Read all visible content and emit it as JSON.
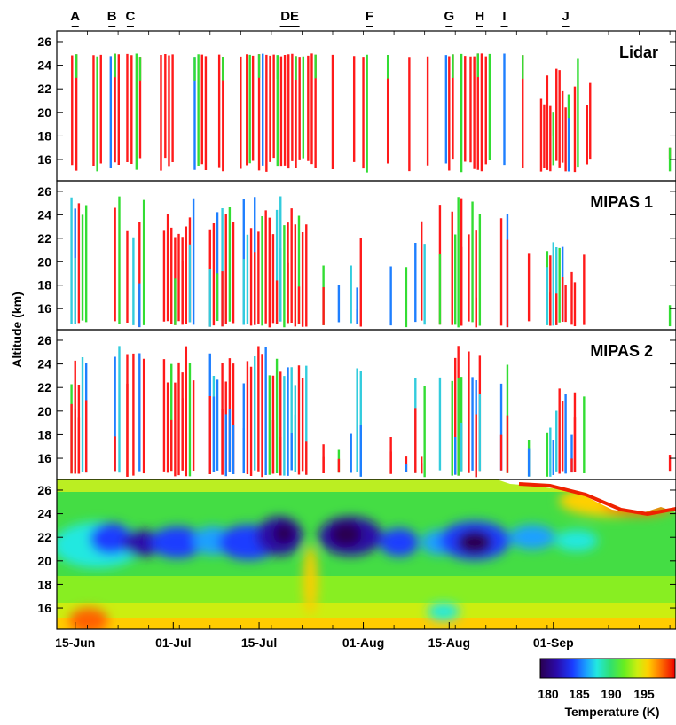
{
  "chart_data": {
    "type": "heatmap",
    "description_kind": "multi-panel time-altitude plot",
    "ylabel": "Altitude (km)",
    "y_ticks": [
      16,
      18,
      20,
      22,
      24,
      26
    ],
    "x_ticks": [
      "15-Jun",
      "01-Jul",
      "15-Jul",
      "01-Aug",
      "15-Aug",
      "01-Sep"
    ],
    "event_labels": [
      {
        "label": "A",
        "day": 3
      },
      {
        "label": "B",
        "day": 9
      },
      {
        "label": "C",
        "day": 12
      },
      {
        "label": "DE",
        "day": 38
      },
      {
        "label": "F",
        "day": 51
      },
      {
        "label": "G",
        "day": 64
      },
      {
        "label": "H",
        "day": 69
      },
      {
        "label": "I",
        "day": 73
      },
      {
        "label": "J",
        "day": 83
      }
    ],
    "panels": [
      {
        "label": "Lidar"
      },
      {
        "label": "MIPAS 1"
      },
      {
        "label": "MIPAS 2"
      },
      {
        "label": ""
      }
    ],
    "colorbar": {
      "ticks": [
        "180",
        "185",
        "190",
        "195"
      ],
      "label": "Temperature (K)",
      "range": [
        177,
        200
      ]
    },
    "colors": {
      "red": "#ff1a1a",
      "green": "#33dd33",
      "blue": "#1e7fff",
      "cyan": "#33ccdd"
    }
  }
}
